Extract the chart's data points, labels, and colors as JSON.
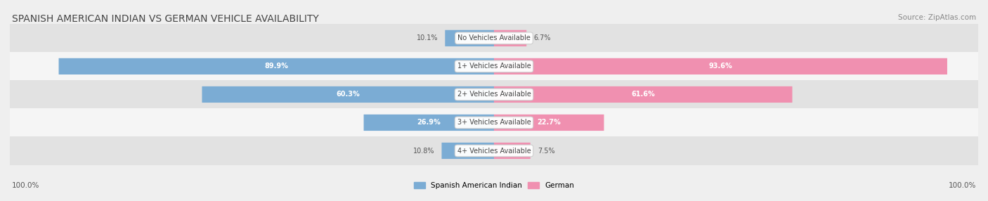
{
  "title": "SPANISH AMERICAN INDIAN VS GERMAN VEHICLE AVAILABILITY",
  "source": "Source: ZipAtlas.com",
  "categories": [
    "No Vehicles Available",
    "1+ Vehicles Available",
    "2+ Vehicles Available",
    "3+ Vehicles Available",
    "4+ Vehicles Available"
  ],
  "spanish_values": [
    10.1,
    89.9,
    60.3,
    26.9,
    10.8
  ],
  "german_values": [
    6.7,
    93.6,
    61.6,
    22.7,
    7.5
  ],
  "spanish_color": "#7bacd4",
  "german_color": "#f090b0",
  "spanish_label": "Spanish American Indian",
  "german_label": "German",
  "background_color": "#efefef",
  "max_value": 100.0,
  "axis_label_left": "100.0%",
  "axis_label_right": "100.0%",
  "title_fontsize": 10,
  "source_fontsize": 7.5,
  "bar_height": 0.55,
  "row_colors": [
    "#e2e2e2",
    "#f5f5f5"
  ]
}
